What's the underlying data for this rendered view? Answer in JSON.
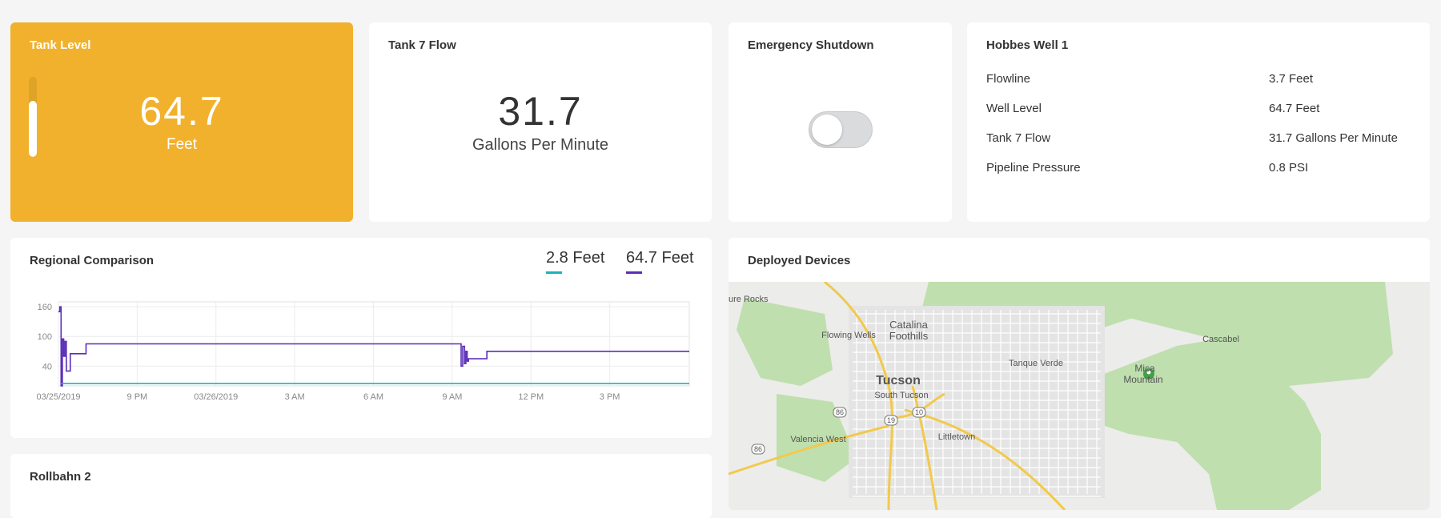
{
  "tank_level": {
    "title": "Tank Level",
    "value": "64.7",
    "unit": "Feet",
    "gauge_fraction": 0.7
  },
  "tank_flow": {
    "title": "Tank 7 Flow",
    "value": "31.7",
    "unit": "Gallons Per Minute"
  },
  "emergency": {
    "title": "Emergency Shutdown",
    "toggle_on": false
  },
  "hobbes": {
    "title": "Hobbes Well 1",
    "rows": [
      {
        "label": "Flowline",
        "value": "3.7 Feet"
      },
      {
        "label": "Well Level",
        "value": "64.7 Feet"
      },
      {
        "label": "Tank 7 Flow",
        "value": "31.7 Gallons Per Minute"
      },
      {
        "label": "Pipeline Pressure",
        "value": "0.8 PSI"
      }
    ]
  },
  "regional": {
    "title": "Regional Comparison",
    "legend": [
      {
        "label": "2.8 Feet",
        "color": "#1fb3b3"
      },
      {
        "label": "64.7 Feet",
        "color": "#5b2fb8"
      }
    ]
  },
  "chart_data": {
    "type": "line",
    "x_ticks": [
      "03/25/2019",
      "9 PM",
      "03/26/2019",
      "3 AM",
      "6 AM",
      "9 AM",
      "12 PM",
      "3 PM"
    ],
    "y_ticks": [
      "160",
      "100",
      "40"
    ],
    "ylim": [
      0,
      170
    ],
    "grid": true,
    "x_hours_domain": [
      0,
      24
    ],
    "series": [
      {
        "name": "64.7 Feet",
        "color": "#5b2fb8",
        "points": [
          [
            0.0,
            150
          ],
          [
            0.05,
            160
          ],
          [
            0.1,
            0
          ],
          [
            0.15,
            95
          ],
          [
            0.2,
            60
          ],
          [
            0.25,
            90
          ],
          [
            0.3,
            30
          ],
          [
            0.4,
            30
          ],
          [
            0.45,
            65
          ],
          [
            1.0,
            65
          ],
          [
            1.05,
            85
          ],
          [
            15.3,
            85
          ],
          [
            15.32,
            40
          ],
          [
            15.38,
            80
          ],
          [
            15.45,
            45
          ],
          [
            15.5,
            70
          ],
          [
            15.55,
            50
          ],
          [
            15.6,
            55
          ],
          [
            16.2,
            55
          ],
          [
            16.3,
            70
          ],
          [
            24.0,
            70
          ]
        ]
      },
      {
        "name": "2.8 Feet",
        "color": "#1fb3b3",
        "points": [
          [
            0.1,
            5
          ],
          [
            24.0,
            5
          ]
        ]
      }
    ]
  },
  "rollbahn": {
    "title": "Rollbahn 2"
  },
  "devices": {
    "title": "Deployed Devices",
    "map_labels": [
      {
        "text": "ure Rocks",
        "size": 11
      },
      {
        "text": "Catalina",
        "size": 13
      },
      {
        "text": "Foothills",
        "size": 13
      },
      {
        "text": "Flowing Wells",
        "size": 11
      },
      {
        "text": "Tucson",
        "size": 16
      },
      {
        "text": "South Tucson",
        "size": 11
      },
      {
        "text": "Tanque Verde",
        "size": 11
      },
      {
        "text": "Mica",
        "size": 12
      },
      {
        "text": "Mountain",
        "size": 12
      },
      {
        "text": "Cascabel",
        "size": 11
      },
      {
        "text": "Valencia West",
        "size": 11
      },
      {
        "text": "Littletown",
        "size": 11
      },
      {
        "text": "86",
        "size": 9
      },
      {
        "text": "86",
        "size": 9
      },
      {
        "text": "19",
        "size": 9
      },
      {
        "text": "10",
        "size": 9
      }
    ]
  }
}
